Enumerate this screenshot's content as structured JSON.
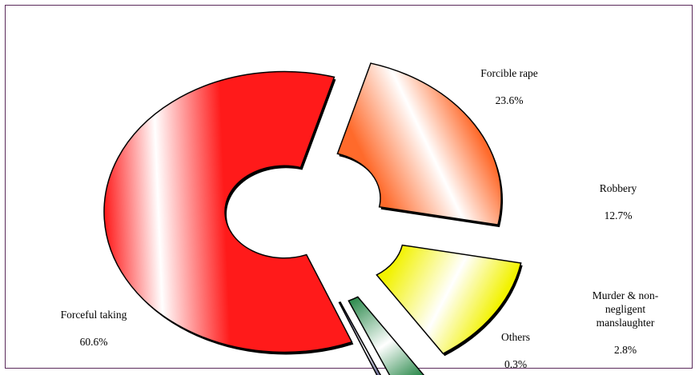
{
  "chart_data": {
    "type": "pie",
    "style": "exploded-doughnut-3d-gradient",
    "title": "",
    "legend": "none",
    "categories": [
      "Forcible rape",
      "Robbery",
      "Murder & non-negligent manslaughter",
      "Others",
      "Forceful taking"
    ],
    "values": [
      23.6,
      12.7,
      2.8,
      0.3,
      60.6
    ],
    "value_labels": [
      "23.6%",
      "12.7%",
      "2.8%",
      "0.3%",
      "60.6%"
    ],
    "label_texts": [
      "Forcible rape",
      "Robbery",
      "Murder & non-\nnegligent\nmanslaughter",
      "Others",
      "Forceful taking"
    ],
    "colors": [
      "#ff6a2b",
      "#f2f200",
      "#2e8b4e",
      "#1a1a5c",
      "#ff1a1a"
    ]
  }
}
